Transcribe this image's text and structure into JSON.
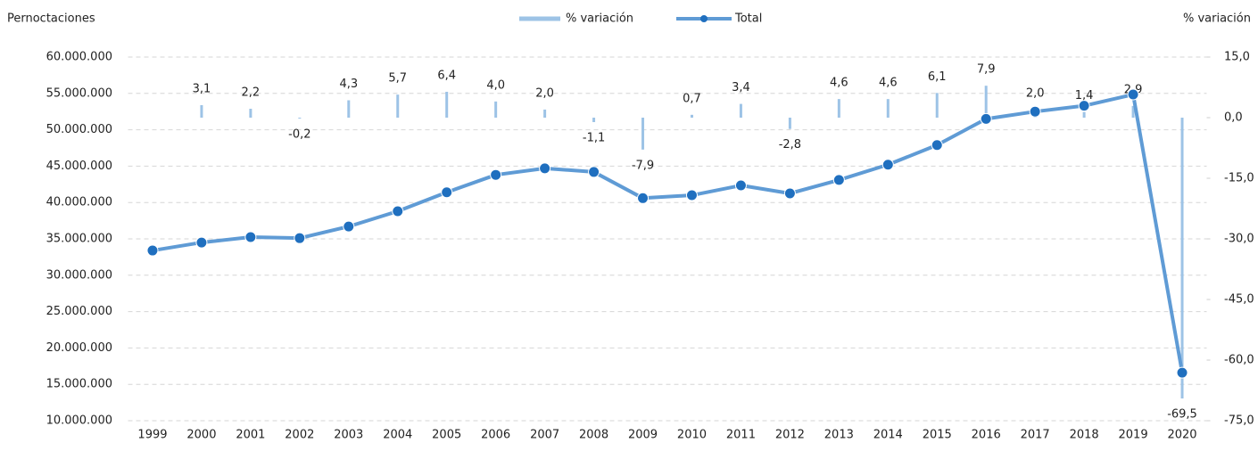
{
  "chart_data": {
    "type": "combo",
    "y_label": "Pernoctaciones",
    "y2_label": "% variación",
    "categories": [
      "1999",
      "2000",
      "2001",
      "2002",
      "2003",
      "2004",
      "2005",
      "2006",
      "2007",
      "2008",
      "2009",
      "2010",
      "2011",
      "2012",
      "2013",
      "2014",
      "2015",
      "2016",
      "2017",
      "2018",
      "2019",
      "2020"
    ],
    "series": [
      {
        "name": "% variación",
        "type": "bar",
        "axis": "y2",
        "color": "#9dc3e6",
        "values": [
          null,
          3.1,
          2.2,
          -0.2,
          4.3,
          5.7,
          6.4,
          4.0,
          2.0,
          -1.1,
          -7.9,
          0.7,
          3.4,
          -2.8,
          4.6,
          4.6,
          6.1,
          7.9,
          2.0,
          1.4,
          2.9,
          -69.5
        ],
        "value_labels": [
          null,
          "3,1",
          "2,2",
          "-0,2",
          "4,3",
          "5,7",
          "6,4",
          "4,0",
          "2,0",
          "-1,1",
          "-7,9",
          "0,7",
          "3,4",
          "-2,8",
          "4,6",
          "4,6",
          "6,1",
          "7,9",
          "2,0",
          "1,4",
          "2,9",
          "-69,5"
        ]
      },
      {
        "name": "Total",
        "type": "line",
        "color": "#5f9bd5",
        "marker_color": "#1f6fbf",
        "values": [
          33400000,
          34500000,
          35250000,
          35100000,
          36700000,
          38800000,
          41400000,
          43800000,
          44700000,
          44200000,
          40600000,
          41000000,
          42350000,
          41250000,
          43100000,
          45200000,
          47900000,
          51500000,
          52500000,
          53300000,
          54850000,
          16600000
        ]
      }
    ],
    "ylim": [
      10000000,
      60000000
    ],
    "yticks": [
      {
        "value": 10000000,
        "label": "10.000.000"
      },
      {
        "value": 15000000,
        "label": "15.000.000"
      },
      {
        "value": 20000000,
        "label": "20.000.000"
      },
      {
        "value": 25000000,
        "label": "25.000.000"
      },
      {
        "value": 30000000,
        "label": "30.000.000"
      },
      {
        "value": 35000000,
        "label": "35.000.000"
      },
      {
        "value": 40000000,
        "label": "40.000.000"
      },
      {
        "value": 45000000,
        "label": "45.000.000"
      },
      {
        "value": 50000000,
        "label": "50.000.000"
      },
      {
        "value": 55000000,
        "label": "55.000.000"
      },
      {
        "value": 60000000,
        "label": "60.000.000"
      }
    ],
    "y2lim": [
      -75,
      15
    ],
    "y2ticks": [
      {
        "value": -75,
        "label": "-75,0"
      },
      {
        "value": -60,
        "label": "-60,0"
      },
      {
        "value": -45,
        "label": "-45,0"
      },
      {
        "value": -30,
        "label": "-30,0"
      },
      {
        "value": -15,
        "label": "-15,0"
      },
      {
        "value": 0,
        "label": "0,0"
      },
      {
        "value": 15,
        "label": "15,0"
      }
    ],
    "grid": true,
    "legend": "top"
  }
}
